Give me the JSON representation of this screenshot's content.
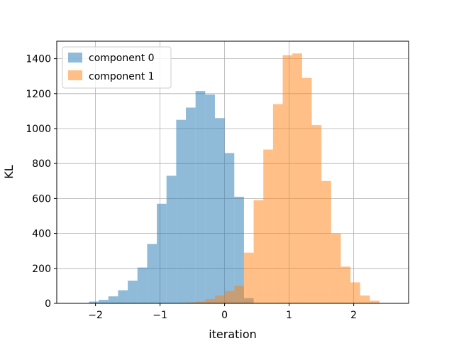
{
  "chart_data": {
    "type": "histogram",
    "xlabel": "iteration",
    "ylabel": "KL",
    "xlim": [
      -2.6,
      2.85
    ],
    "ylim": [
      0,
      1500
    ],
    "xticks": [
      -2,
      -1,
      0,
      1,
      2
    ],
    "xtick_labels": [
      "−2",
      "−1",
      "0",
      "1",
      "2"
    ],
    "yticks": [
      0,
      200,
      400,
      600,
      800,
      1000,
      1200,
      1400
    ],
    "grid": true,
    "legend_position": "top-left",
    "series": [
      {
        "name": "component 0",
        "color": "#1f77b4",
        "alpha": 0.5,
        "bin_edges": [
          -2.1,
          -1.95,
          -1.8,
          -1.65,
          -1.5,
          -1.35,
          -1.2,
          -1.05,
          -0.9,
          -0.75,
          -0.6,
          -0.45,
          -0.3,
          -0.15,
          0.0,
          0.15,
          0.3,
          0.45
        ],
        "counts": [
          10,
          20,
          40,
          75,
          130,
          205,
          340,
          570,
          730,
          1050,
          1120,
          1215,
          1195,
          1060,
          860,
          610,
          30
        ]
      },
      {
        "name": "component 1",
        "color": "#ff7f0e",
        "alpha": 0.5,
        "bin_edges": [
          -0.6,
          -0.45,
          -0.3,
          -0.15,
          0.0,
          0.15,
          0.3,
          0.45,
          0.6,
          0.75,
          0.9,
          1.05,
          1.2,
          1.35,
          1.5,
          1.65,
          1.8,
          1.95,
          2.1,
          2.25,
          2.4
        ],
        "counts": [
          5,
          10,
          25,
          45,
          70,
          100,
          290,
          590,
          880,
          1140,
          1420,
          1430,
          1290,
          1020,
          700,
          400,
          210,
          120,
          45,
          15
        ]
      }
    ]
  }
}
